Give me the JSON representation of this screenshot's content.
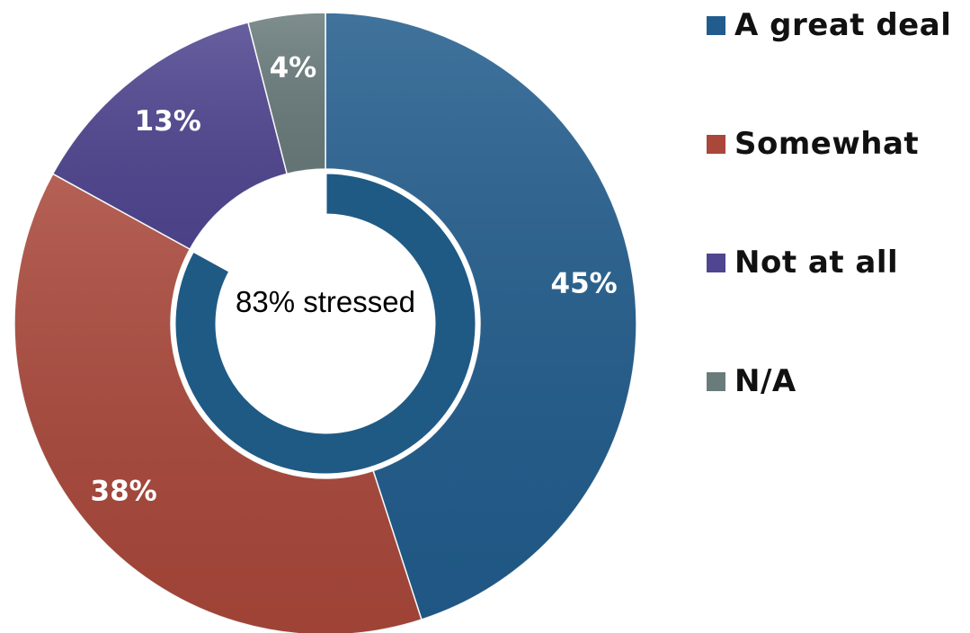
{
  "chart_data": {
    "type": "pie",
    "variant": "donut",
    "title": "",
    "slices": [
      {
        "label": "A great deal",
        "value": 45,
        "display": "45%",
        "color": "#215c8c"
      },
      {
        "label": "Somewhat",
        "value": 38,
        "display": "38%",
        "color": "#a9473a"
      },
      {
        "label": "Not at all",
        "value": 13,
        "display": "13%",
        "color": "#4f4590"
      },
      {
        "label": "N/A",
        "value": 4,
        "display": "4%",
        "color": "#6a7b7b"
      }
    ],
    "inner_ring": {
      "value": 83,
      "color": "#1f5a85"
    },
    "center_text": "83% stressed",
    "legend": {
      "position": "right"
    }
  }
}
